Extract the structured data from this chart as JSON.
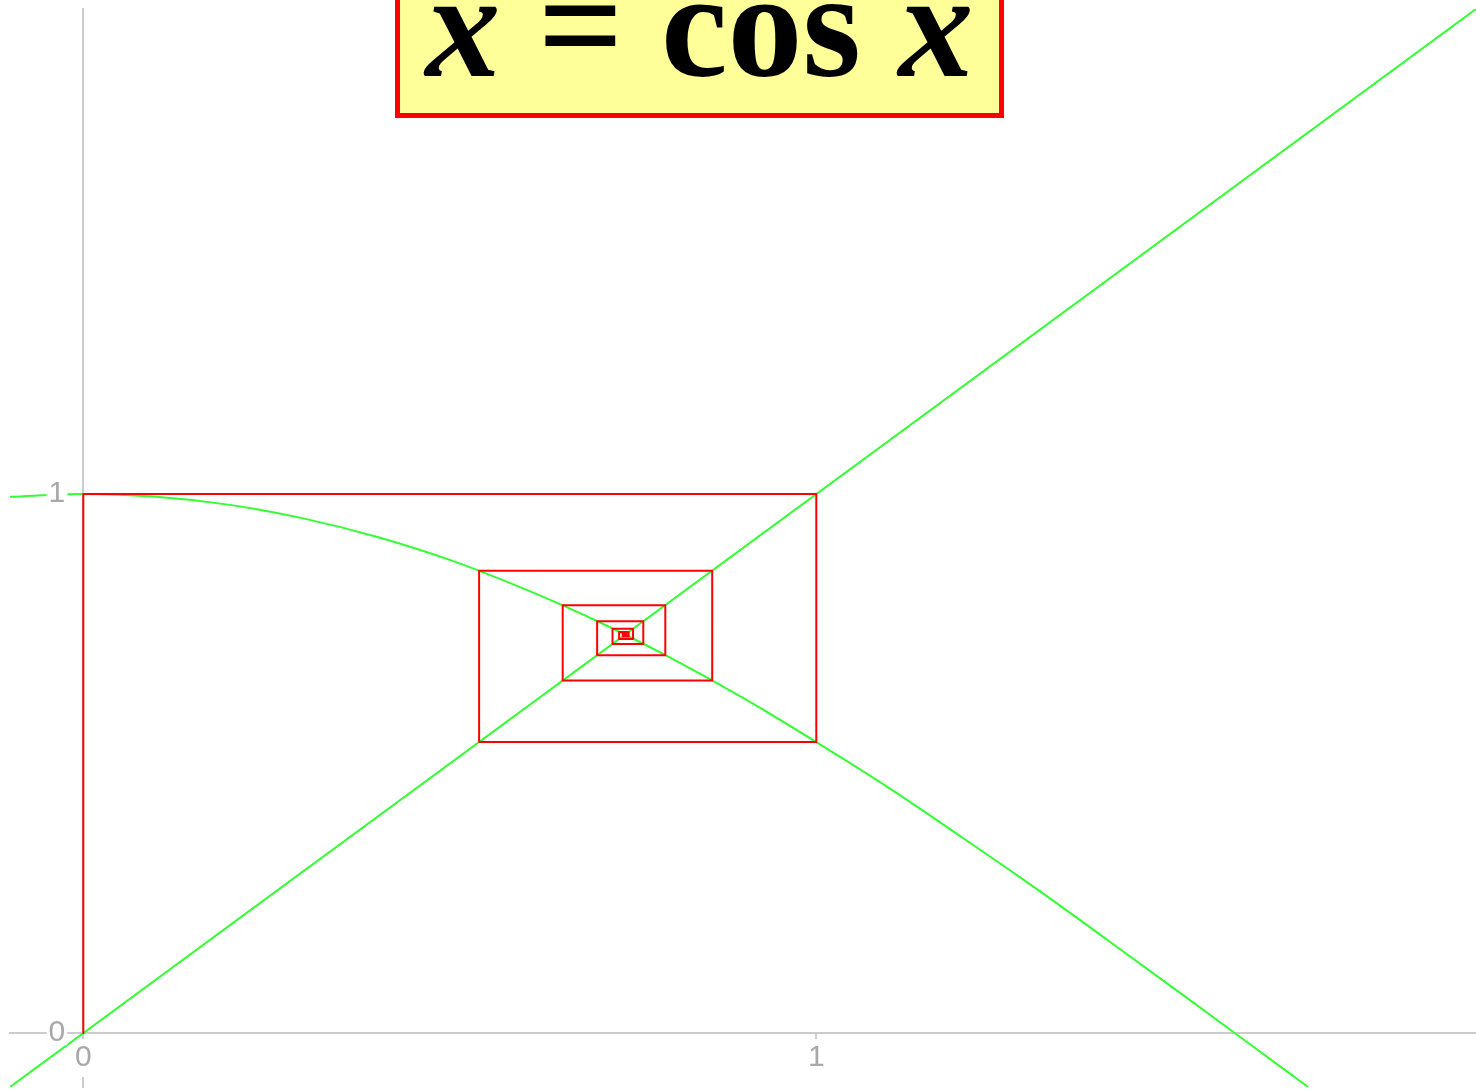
{
  "chart_data": {
    "type": "line",
    "title": "x = cos x",
    "xlim": [
      -0.1,
      1.9
    ],
    "ylim": [
      -0.1,
      1.9
    ],
    "xticks": [
      0,
      1
    ],
    "yticks": [
      0,
      1
    ],
    "grid": false,
    "legend": false,
    "marker": "none",
    "line_style": "solid",
    "series": [
      {
        "color": "#33ff33",
        "x": [
          -0.1,
          1.9
        ],
        "values": [
          -0.1,
          1.9
        ]
      },
      {
        "color": "#33ff33",
        "x": [
          -0.1,
          0,
          0.1,
          0.2,
          0.3,
          0.4,
          0.5,
          0.6,
          0.7,
          0.8,
          0.9,
          1.0,
          1.1,
          1.2,
          1.3,
          1.4,
          1.5,
          1.6,
          1.67
        ],
        "values": [
          0.995,
          1.0,
          0.995,
          0.98,
          0.955,
          0.921,
          0.878,
          0.825,
          0.765,
          0.697,
          0.622,
          0.54,
          0.454,
          0.362,
          0.268,
          0.17,
          0.071,
          -0.029,
          -0.099
        ]
      },
      {
        "color": "#ff0000",
        "x": [
          0,
          0,
          1,
          1,
          0.54,
          0.54,
          0.858,
          0.858,
          0.654,
          0.654,
          0.794,
          0.794,
          0.701,
          0.701,
          0.764,
          0.764,
          0.722,
          0.722,
          0.75,
          0.75,
          0.731,
          0.731,
          0.744,
          0.744,
          0.736,
          0.736,
          0.741,
          0.741,
          0.738
        ],
        "values": [
          0,
          1,
          1,
          0.54,
          0.54,
          0.858,
          0.858,
          0.654,
          0.654,
          0.794,
          0.794,
          0.701,
          0.701,
          0.764,
          0.764,
          0.722,
          0.722,
          0.75,
          0.75,
          0.731,
          0.731,
          0.744,
          0.744,
          0.736,
          0.736,
          0.741,
          0.741,
          0.738,
          0.738
        ]
      }
    ]
  }
}
